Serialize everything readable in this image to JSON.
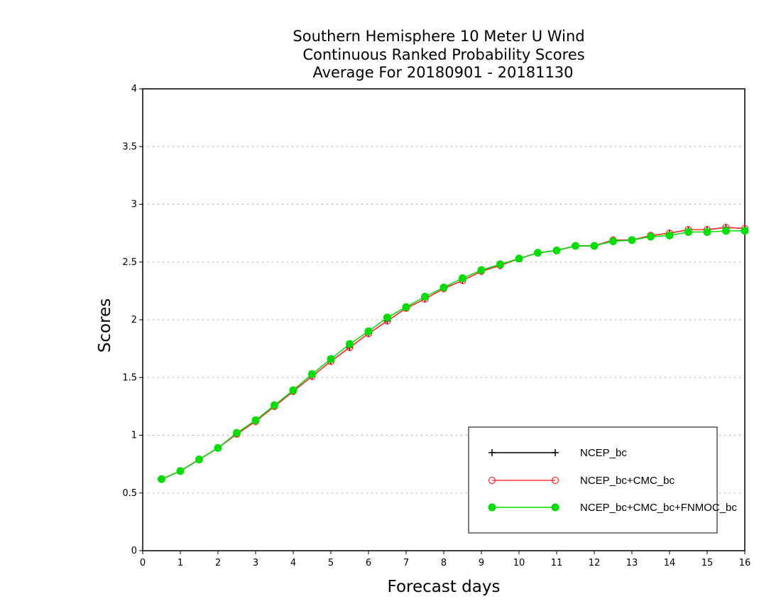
{
  "chart_data": {
    "type": "line",
    "title": [
      "Southern Hemisphere 10 Meter U Wind",
      "Continuous Ranked Probability Scores",
      "Average For 20180901 - 20181130"
    ],
    "xlabel": "Forecast days",
    "ylabel": "Scores",
    "xlim": [
      0,
      16
    ],
    "ylim": [
      0,
      4
    ],
    "xticks": [
      "0",
      "1",
      "2",
      "3",
      "4",
      "5",
      "6",
      "7",
      "8",
      "9",
      "10",
      "11",
      "12",
      "13",
      "14",
      "15",
      "16"
    ],
    "yticks": [
      "0",
      "0.5",
      "1",
      "1.5",
      "2",
      "2.5",
      "3",
      "3.5",
      "4"
    ],
    "grid": "horizontal dotted",
    "legend_position": "bottom-right",
    "x": [
      0.5,
      1,
      1.5,
      2,
      2.5,
      3,
      3.5,
      4,
      4.5,
      5,
      5.5,
      6,
      6.5,
      7,
      7.5,
      8,
      8.5,
      9,
      9.5,
      10,
      10.5,
      11,
      11.5,
      12,
      12.5,
      13,
      13.5,
      14,
      14.5,
      15,
      15.5,
      16
    ],
    "series": [
      {
        "name": "NCEP_bc",
        "color": "#000000",
        "marker": "plus",
        "values": [
          0.62,
          0.69,
          0.79,
          0.89,
          1.01,
          1.12,
          1.25,
          1.38,
          1.51,
          1.64,
          1.76,
          1.88,
          1.99,
          2.1,
          2.18,
          2.27,
          2.34,
          2.42,
          2.47,
          2.53,
          2.58,
          2.6,
          2.64,
          2.64,
          2.69,
          2.69,
          2.73,
          2.75,
          2.78,
          2.78,
          2.8,
          2.79
        ]
      },
      {
        "name": "NCEP_bc+CMC_bc",
        "color": "#ff3333",
        "marker": "open-circle",
        "values": [
          0.62,
          0.69,
          0.79,
          0.89,
          1.01,
          1.12,
          1.25,
          1.38,
          1.51,
          1.64,
          1.76,
          1.88,
          1.99,
          2.1,
          2.18,
          2.27,
          2.34,
          2.42,
          2.47,
          2.53,
          2.58,
          2.6,
          2.64,
          2.64,
          2.69,
          2.69,
          2.73,
          2.75,
          2.78,
          2.78,
          2.8,
          2.79
        ]
      },
      {
        "name": "NCEP_bc+CMC_bc+FNMOC_bc",
        "color": "#00dd00",
        "marker": "filled-circle",
        "values": [
          0.62,
          0.69,
          0.79,
          0.89,
          1.02,
          1.13,
          1.26,
          1.39,
          1.53,
          1.66,
          1.79,
          1.9,
          2.02,
          2.11,
          2.2,
          2.28,
          2.36,
          2.43,
          2.48,
          2.53,
          2.58,
          2.6,
          2.64,
          2.64,
          2.68,
          2.69,
          2.72,
          2.73,
          2.76,
          2.76,
          2.77,
          2.77
        ]
      }
    ]
  }
}
